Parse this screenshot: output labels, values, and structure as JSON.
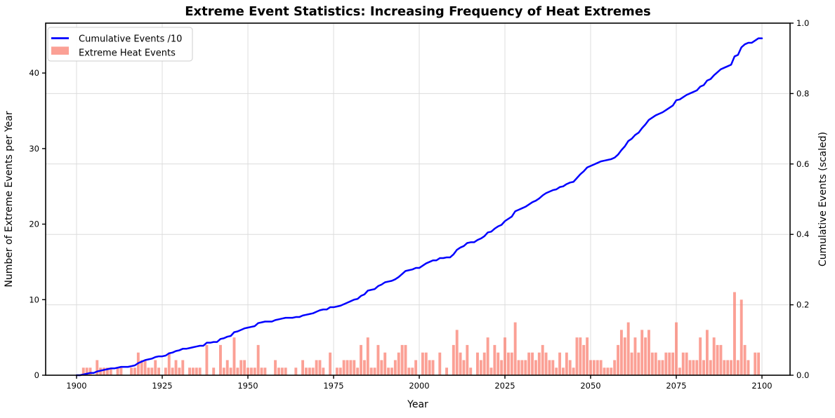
{
  "title": "Extreme Event Statistics: Increasing Frequency of Heat Extremes",
  "legend": {
    "items": [
      {
        "label": "Cumulative Events /10",
        "marker": "line",
        "color": "#0000ff"
      },
      {
        "label": "Extreme Heat Events",
        "marker": "patch",
        "color": "#fa8072"
      }
    ],
    "position": "upper left"
  },
  "axes": {
    "x": {
      "label": "Year",
      "ticks": [
        1900,
        1925,
        1950,
        1975,
        2000,
        2025,
        2050,
        2075,
        2100
      ],
      "range": [
        1891,
        2108
      ]
    },
    "y_left": {
      "label": "Number of Extreme Events per Year",
      "ticks": [
        0,
        10,
        20,
        30,
        40
      ],
      "range": [
        0,
        46.6
      ]
    },
    "y_right": {
      "label": "Cumulative Events (scaled)",
      "ticks": [
        "0.0",
        "0.2",
        "0.4",
        "0.6",
        "0.8",
        "1.0"
      ],
      "range": [
        0.0,
        1.0
      ]
    }
  },
  "colors": {
    "line": "#0000ff",
    "bar": "#fa8072",
    "bar_alpha": 0.75,
    "grid": "#dcdcdc",
    "background": "#ffffff"
  },
  "chart_data": {
    "type": "combo",
    "title": "Extreme Event Statistics: Increasing Frequency of Heat Extremes",
    "xlabel": "Year",
    "ylabel_left": "Number of Extreme Events per Year",
    "ylabel_right": "Cumulative Events (scaled)",
    "grid": "on",
    "legend_position": "upper left",
    "x_start": 1900,
    "x_end": 2100,
    "series": [
      {
        "name": "Extreme Heat Events",
        "type": "bar",
        "axis": "left",
        "color": "#fa8072",
        "alpha": 0.75,
        "values": [
          0,
          0,
          1,
          1,
          1,
          0,
          2,
          1,
          1,
          1,
          1,
          0,
          1,
          1,
          0,
          0,
          1,
          1,
          3,
          2,
          2,
          1,
          1,
          2,
          1,
          0,
          1,
          3,
          1,
          2,
          1,
          2,
          0,
          1,
          1,
          1,
          1,
          0,
          4,
          0,
          1,
          0,
          4,
          1,
          2,
          1,
          5,
          1,
          2,
          2,
          1,
          1,
          1,
          4,
          1,
          1,
          0,
          0,
          2,
          1,
          1,
          1,
          0,
          0,
          1,
          0,
          2,
          1,
          1,
          1,
          2,
          2,
          1,
          0,
          3,
          0,
          1,
          1,
          2,
          2,
          2,
          2,
          1,
          4,
          2,
          5,
          1,
          1,
          4,
          2,
          3,
          1,
          1,
          2,
          3,
          4,
          4,
          1,
          1,
          2,
          0,
          3,
          3,
          2,
          2,
          0,
          3,
          0,
          1,
          0,
          4,
          6,
          3,
          2,
          4,
          1,
          0,
          3,
          2,
          3,
          5,
          1,
          4,
          3,
          2,
          5,
          3,
          3,
          7,
          2,
          2,
          2,
          3,
          3,
          2,
          3,
          4,
          3,
          2,
          2,
          1,
          3,
          1,
          3,
          2,
          1,
          5,
          5,
          4,
          5,
          2,
          2,
          2,
          2,
          1,
          1,
          1,
          2,
          4,
          6,
          5,
          7,
          3,
          5,
          3,
          6,
          5,
          6,
          3,
          3,
          2,
          2,
          3,
          3,
          3,
          7,
          1,
          3,
          3,
          2,
          2,
          2,
          5,
          2,
          6,
          2,
          5,
          4,
          4,
          2,
          2,
          2,
          11,
          2,
          10,
          4,
          2,
          0,
          3,
          3,
          0
        ]
      },
      {
        "name": "Cumulative Events /10",
        "type": "line",
        "axis": "left",
        "color": "#0000ff",
        "linewidth": 2.5,
        "derivation": "cumulative_sum(bar_values)/10",
        "end_value_left_axis": 44.6,
        "end_value_right_axis": 0.95
      }
    ]
  }
}
